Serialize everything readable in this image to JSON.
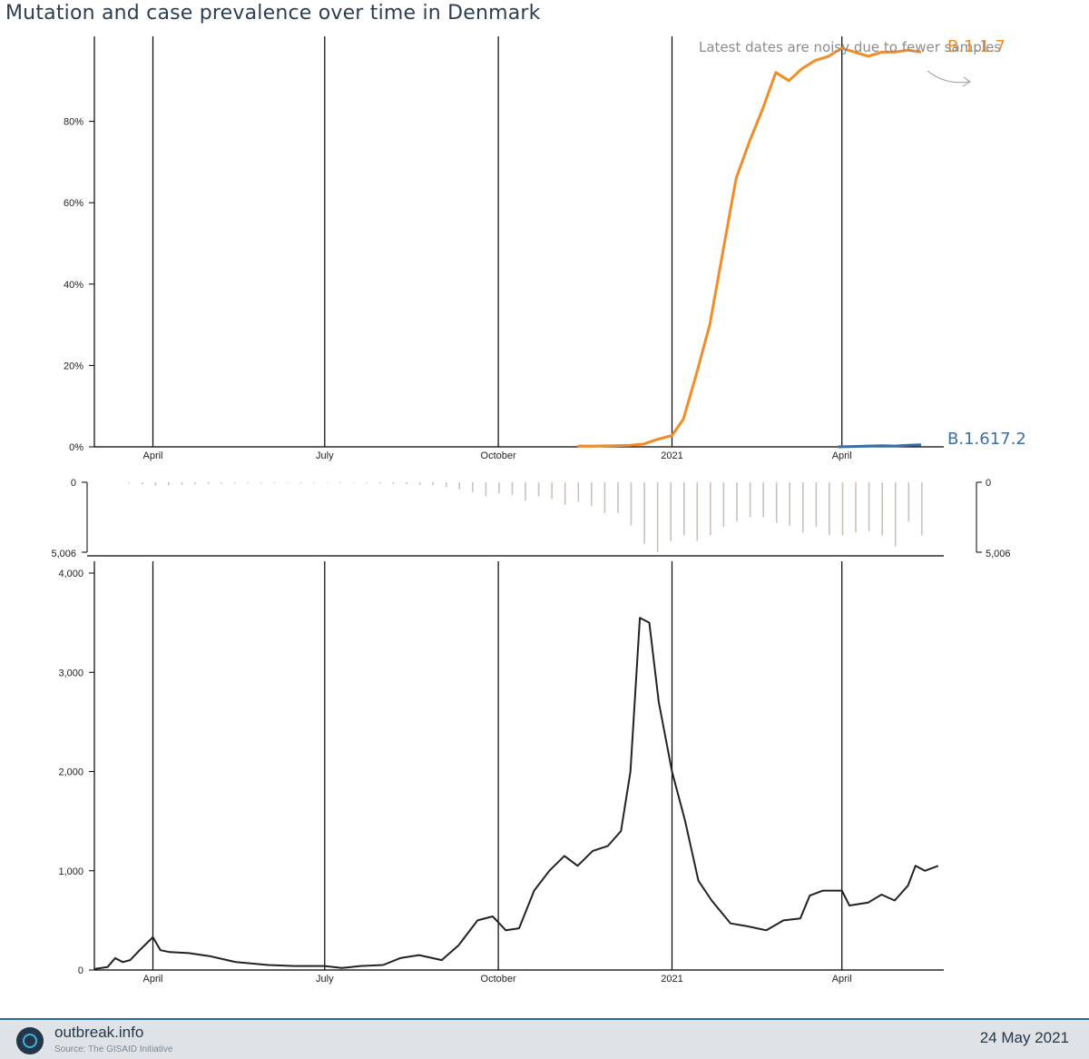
{
  "title": "Mutation and case prevalence over time in Denmark",
  "annotation": "Latest dates are noisy due to fewer samples",
  "footer": {
    "brand": "outbreak.info",
    "source": "Source: The GISAID Initiative",
    "date": "24 May 2021"
  },
  "colors": {
    "b117": "#f28c28",
    "b1617": "#3a6ea8",
    "cases": "#222222",
    "samples": "#c9c2bb"
  },
  "chart_data": [
    {
      "type": "line",
      "name": "mutation-prevalence",
      "x_ticks": [
        "April",
        "July",
        "October",
        "2021",
        "April"
      ],
      "x_tick_dates": [
        "2020-04-01",
        "2020-07-01",
        "2020-10-01",
        "2021-01-01",
        "2021-04-01"
      ],
      "y_ticks": [
        "0%",
        "20%",
        "40%",
        "60%",
        "80%"
      ],
      "ylim": [
        0,
        1.0
      ],
      "series": [
        {
          "name": "B.1.1.7",
          "x": [
            "2020-11-12",
            "2020-11-20",
            "2020-12-01",
            "2020-12-10",
            "2020-12-17",
            "2020-12-24",
            "2021-01-01",
            "2021-01-07",
            "2021-01-14",
            "2021-01-21",
            "2021-01-28",
            "2021-02-04",
            "2021-02-11",
            "2021-02-18",
            "2021-02-25",
            "2021-03-04",
            "2021-03-11",
            "2021-03-18",
            "2021-03-25",
            "2021-04-01",
            "2021-04-08",
            "2021-04-15",
            "2021-04-22",
            "2021-04-29",
            "2021-05-06",
            "2021-05-13"
          ],
          "y": [
            0.002,
            0.002,
            0.003,
            0.004,
            0.007,
            0.018,
            0.028,
            0.068,
            0.18,
            0.3,
            0.48,
            0.66,
            0.75,
            0.83,
            0.92,
            0.9,
            0.93,
            0.95,
            0.96,
            0.98,
            0.97,
            0.96,
            0.97,
            0.97,
            0.975,
            0.97
          ]
        },
        {
          "name": "B.1.617.2",
          "x": [
            "2021-03-30",
            "2021-04-07",
            "2021-04-15",
            "2021-04-22",
            "2021-04-29",
            "2021-05-06",
            "2021-05-13"
          ],
          "y": [
            0.0,
            0.001,
            0.002,
            0.003,
            0.002,
            0.004,
            0.005
          ]
        }
      ]
    },
    {
      "type": "bar",
      "name": "samples-sequenced",
      "y_ticks": [
        "0",
        "5,006"
      ],
      "ylim": [
        0,
        5006
      ],
      "x": [
        "2020-03-19",
        "2020-03-26",
        "2020-04-02",
        "2020-04-09",
        "2020-04-16",
        "2020-04-23",
        "2020-04-30",
        "2020-05-07",
        "2020-05-14",
        "2020-05-21",
        "2020-05-28",
        "2020-06-04",
        "2020-06-11",
        "2020-06-18",
        "2020-06-25",
        "2020-07-02",
        "2020-07-09",
        "2020-07-16",
        "2020-07-23",
        "2020-07-30",
        "2020-08-06",
        "2020-08-13",
        "2020-08-20",
        "2020-08-27",
        "2020-09-03",
        "2020-09-10",
        "2020-09-17",
        "2020-09-24",
        "2020-10-01",
        "2020-10-08",
        "2020-10-15",
        "2020-10-22",
        "2020-10-29",
        "2020-11-05",
        "2020-11-12",
        "2020-11-19",
        "2020-11-26",
        "2020-12-03",
        "2020-12-10",
        "2020-12-17",
        "2020-12-24",
        "2020-12-31",
        "2021-01-07",
        "2021-01-14",
        "2021-01-21",
        "2021-01-28",
        "2021-02-04",
        "2021-02-11",
        "2021-02-18",
        "2021-02-25",
        "2021-03-04",
        "2021-03-11",
        "2021-03-18",
        "2021-03-25",
        "2021-04-01",
        "2021-04-08",
        "2021-04-15",
        "2021-04-22",
        "2021-04-29",
        "2021-05-06",
        "2021-05-13"
      ],
      "values": [
        80,
        150,
        250,
        200,
        170,
        150,
        120,
        100,
        80,
        70,
        60,
        60,
        50,
        60,
        50,
        40,
        50,
        40,
        60,
        80,
        120,
        150,
        180,
        200,
        350,
        500,
        700,
        1000,
        800,
        900,
        1300,
        1000,
        1200,
        1600,
        1400,
        1700,
        2200,
        2200,
        3100,
        4400,
        5006,
        4200,
        3800,
        4200,
        3800,
        3200,
        2800,
        2500,
        2500,
        2900,
        3100,
        3600,
        3200,
        3800,
        3800,
        3600,
        3500,
        3800,
        4600,
        2800,
        3800
      ]
    },
    {
      "type": "line",
      "name": "daily-cases",
      "x_ticks": [
        "April",
        "July",
        "October",
        "2021",
        "April"
      ],
      "y_ticks": [
        "0",
        "1,000",
        "2,000",
        "3,000",
        "4,000"
      ],
      "ylim": [
        0,
        4000
      ],
      "series": [
        {
          "name": "cases",
          "x": [
            "2020-03-01",
            "2020-03-08",
            "2020-03-12",
            "2020-03-16",
            "2020-03-20",
            "2020-03-25",
            "2020-04-01",
            "2020-04-05",
            "2020-04-10",
            "2020-04-20",
            "2020-05-01",
            "2020-05-15",
            "2020-06-01",
            "2020-06-15",
            "2020-07-01",
            "2020-07-10",
            "2020-07-20",
            "2020-08-01",
            "2020-08-10",
            "2020-08-20",
            "2020-09-01",
            "2020-09-10",
            "2020-09-20",
            "2020-09-28",
            "2020-10-05",
            "2020-10-12",
            "2020-10-20",
            "2020-10-28",
            "2020-11-05",
            "2020-11-12",
            "2020-11-20",
            "2020-11-28",
            "2020-12-05",
            "2020-12-10",
            "2020-12-15",
            "2020-12-20",
            "2020-12-25",
            "2021-01-01",
            "2021-01-08",
            "2021-01-15",
            "2021-01-22",
            "2021-02-01",
            "2021-02-10",
            "2021-02-20",
            "2021-03-01",
            "2021-03-10",
            "2021-03-15",
            "2021-03-22",
            "2021-04-01",
            "2021-04-05",
            "2021-04-15",
            "2021-04-22",
            "2021-04-29",
            "2021-05-06",
            "2021-05-10",
            "2021-05-15",
            "2021-05-22"
          ],
          "y": [
            10,
            30,
            120,
            80,
            100,
            200,
            330,
            200,
            180,
            170,
            140,
            80,
            50,
            40,
            40,
            20,
            40,
            50,
            120,
            150,
            100,
            250,
            500,
            540,
            400,
            420,
            800,
            1000,
            1150,
            1050,
            1200,
            1250,
            1400,
            2000,
            3550,
            3500,
            2700,
            2000,
            1500,
            900,
            700,
            470,
            440,
            400,
            500,
            520,
            750,
            800,
            800,
            650,
            680,
            760,
            700,
            850,
            1050,
            1000,
            1050
          ]
        }
      ]
    }
  ]
}
